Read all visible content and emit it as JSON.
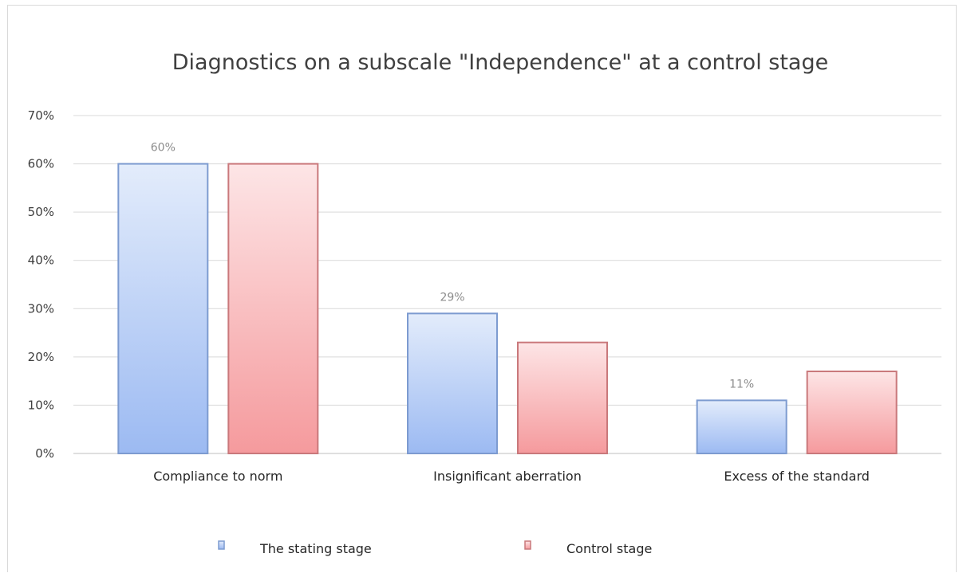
{
  "chart_data": {
    "type": "bar",
    "title": "Diagnostics on a subscale \"Independence\" at a control stage",
    "categories": [
      "Compliance to norm",
      "Insignificant aberration",
      "Excess of the standard"
    ],
    "series": [
      {
        "name": "The stating stage",
        "values": [
          60,
          29,
          11
        ],
        "data_labels": [
          "60%",
          "29%",
          "11%"
        ],
        "color_top": "#e3ecfb",
        "color_bottom": "#9cbaf2",
        "stroke": "#7d9bd0"
      },
      {
        "name": "Control stage",
        "values": [
          60,
          23,
          17
        ],
        "data_labels": [],
        "color_top": "#fde5e6",
        "color_bottom": "#f59a9d",
        "stroke": "#c9787b"
      }
    ],
    "yticks": [
      "0%",
      "10%",
      "20%",
      "30%",
      "40%",
      "50%",
      "60%",
      "70%"
    ],
    "ylim": [
      0,
      70
    ],
    "grid": true,
    "legend_position": "bottom",
    "xlabel": "",
    "ylabel": ""
  }
}
